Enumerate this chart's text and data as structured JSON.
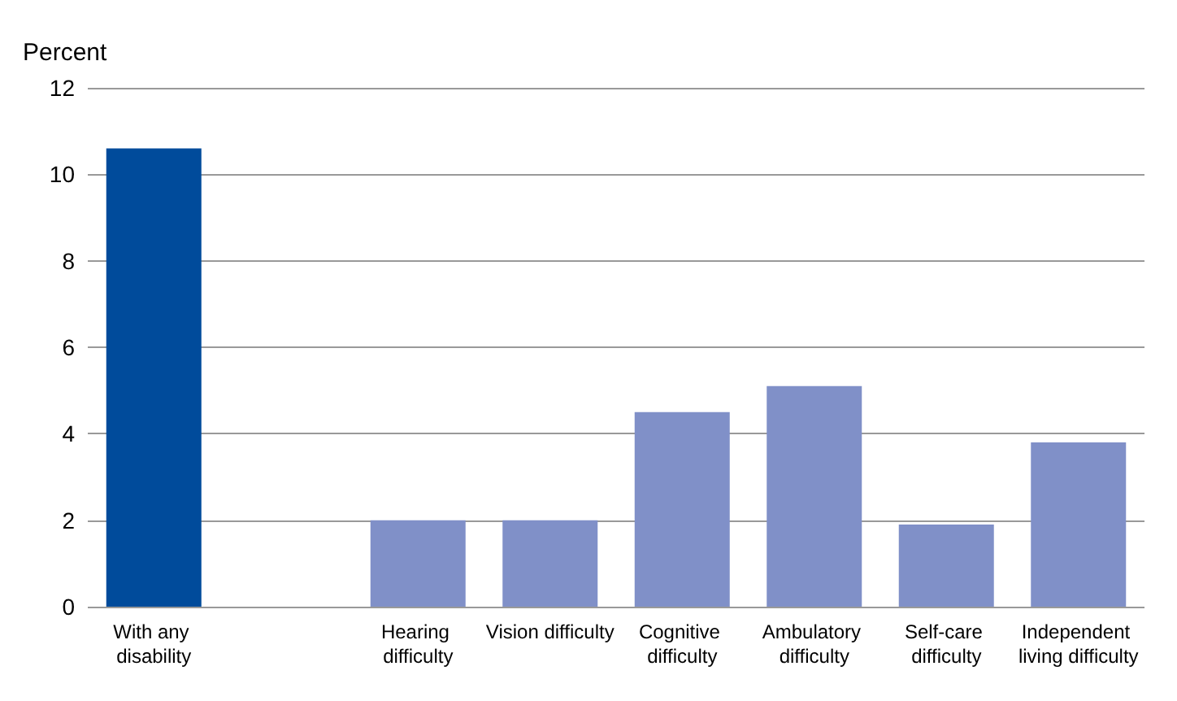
{
  "chart_data": {
    "type": "bar",
    "ylabel": "Percent",
    "categories": [
      "With any disability",
      null,
      "Hearing difficulty",
      "Vision difficulty",
      "Cognitive difficulty",
      "Ambulatory difficulty",
      "Self-care difficulty",
      "Independent living difficulty"
    ],
    "values": [
      10.6,
      null,
      2.0,
      2.0,
      4.5,
      5.1,
      1.9,
      3.8
    ],
    "colors": [
      "#004b9b",
      null,
      "#8090c8",
      "#8090c8",
      "#8090c8",
      "#8090c8",
      "#8090c8",
      "#8090c8"
    ],
    "ylim": [
      0,
      12
    ],
    "yticks": [
      0,
      2,
      4,
      6,
      8,
      10,
      12
    ],
    "grid": "y"
  }
}
